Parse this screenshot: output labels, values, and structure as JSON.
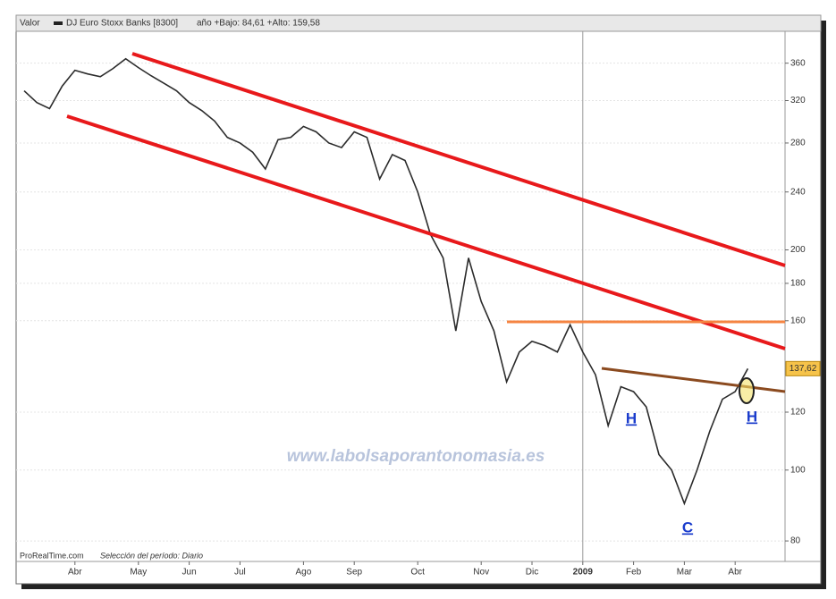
{
  "chart_data": {
    "type": "line",
    "header": {
      "field": "Valor",
      "instrument": "DJ Euro Stoxx Banks [8300]",
      "range": "año +Bajo: 84,61 +Alto: 159,58"
    },
    "footer": {
      "source": "ProRealTime.com",
      "period": "Selección del período: Diario"
    },
    "watermark": "www.labolsaporantonomasia.es",
    "annotations": [
      "H",
      "H",
      "C"
    ],
    "categories": [
      null,
      null,
      null,
      null,
      "Abr",
      null,
      null,
      null,
      null,
      "May",
      null,
      null,
      null,
      "Jun",
      null,
      null,
      null,
      "Jul",
      null,
      null,
      null,
      null,
      "Ago",
      null,
      null,
      null,
      "Sep",
      null,
      null,
      null,
      null,
      "Oct",
      null,
      null,
      null,
      null,
      "Nov",
      null,
      null,
      null,
      "Dic",
      null,
      null,
      null,
      "2009",
      null,
      null,
      null,
      "Feb",
      null,
      null,
      null,
      "Mar",
      null,
      null,
      null,
      "Abr",
      null
    ],
    "series": [
      {
        "name": "DJ Euro Stoxx Banks [8300]",
        "color": "#2b2b2b",
        "values": [
          330,
          318,
          312,
          335,
          352,
          348,
          345,
          354,
          365,
          355,
          346,
          338,
          330,
          318,
          310,
          300,
          285,
          280,
          272,
          258,
          283,
          285,
          295,
          290,
          280,
          276,
          290,
          285,
          250,
          270,
          265,
          240,
          210,
          195,
          155,
          195,
          170,
          155,
          132,
          145,
          150,
          148,
          145,
          158,
          145,
          135,
          115,
          130,
          128,
          122,
          105,
          100,
          90,
          100,
          113,
          125,
          128,
          137.62
        ]
      }
    ],
    "last_price": {
      "value": 137.62,
      "label": "137,62"
    },
    "log_scale": true,
    "ylim": [
      75,
      398
    ],
    "yticks": [
      80,
      100,
      120,
      160,
      180,
      200,
      240,
      280,
      320,
      360
    ],
    "grid": true
  }
}
